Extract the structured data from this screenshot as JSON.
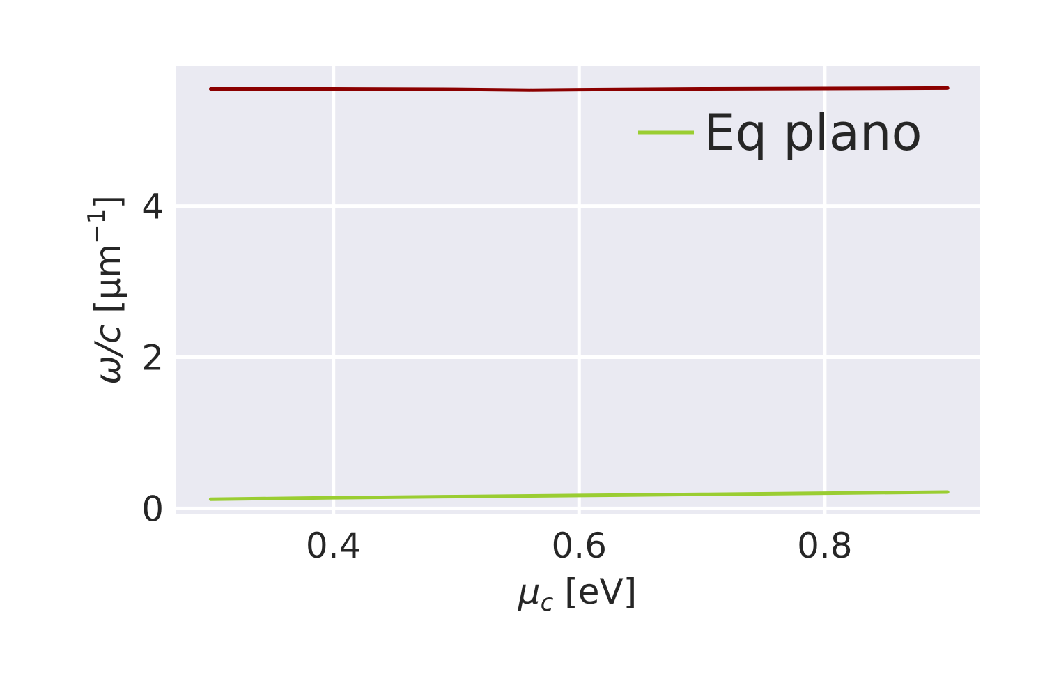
{
  "chart_data": {
    "type": "line",
    "xlabel": {
      "symbol": "μ",
      "sub": "c",
      "unit": " [eV]"
    },
    "ylabel": {
      "symbol": "ω/c",
      "unit_open": " [μm",
      "sup": "−1",
      "unit_close": "]"
    },
    "xlim": [
      0.272,
      0.926
    ],
    "ylim": [
      -0.08,
      5.85
    ],
    "xticks": [
      {
        "value": 0.4,
        "label": "0.4"
      },
      {
        "value": 0.6,
        "label": "0.6"
      },
      {
        "value": 0.8,
        "label": "0.8"
      }
    ],
    "yticks": [
      {
        "value": 0,
        "label": "0"
      },
      {
        "value": 2,
        "label": "2"
      },
      {
        "value": 4,
        "label": "4"
      }
    ],
    "grid": true,
    "legend_position": "top-right",
    "series": [
      {
        "name": "",
        "color": "#8b0000",
        "x": [
          0.3,
          0.4,
          0.5,
          0.56,
          0.6,
          0.7,
          0.8,
          0.9
        ],
        "y": [
          5.55,
          5.55,
          5.545,
          5.535,
          5.54,
          5.55,
          5.555,
          5.56
        ]
      },
      {
        "name": "Eq plano",
        "color": "#9acd32",
        "x": [
          0.3,
          0.4,
          0.5,
          0.6,
          0.7,
          0.8,
          0.9
        ],
        "y": [
          0.12,
          0.14,
          0.155,
          0.17,
          0.185,
          0.2,
          0.215
        ]
      }
    ],
    "legend": [
      {
        "label": "Eq plano",
        "color": "#9acd32"
      }
    ]
  }
}
